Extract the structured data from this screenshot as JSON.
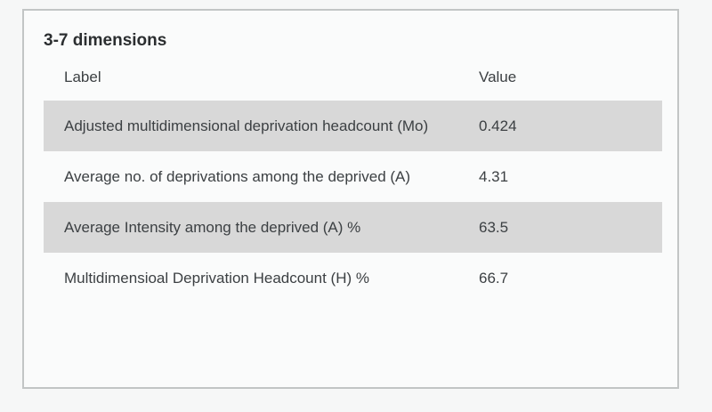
{
  "card": {
    "title": "3-7 dimensions",
    "table": {
      "columns": {
        "label": "Label",
        "value": "Value"
      },
      "rows": [
        {
          "label": "Adjusted multidimensional deprivation headcount (Mo)",
          "value": "0.424"
        },
        {
          "label": "Average no. of deprivations among the deprived (A)",
          "value": "4.31"
        },
        {
          "label": "Average Intensity among the deprived (A) %",
          "value": "63.5"
        },
        {
          "label": "Multidimensioal Deprivation Headcount (H) %",
          "value": "66.7"
        }
      ]
    }
  },
  "colors": {
    "page_bg": "#f6f7f7",
    "card_bg": "#fafbfb",
    "card_border": "#c2c5c5",
    "row_stripe": "#d8d8d8",
    "text": "#3c4043",
    "title_text": "#2b2e30"
  }
}
